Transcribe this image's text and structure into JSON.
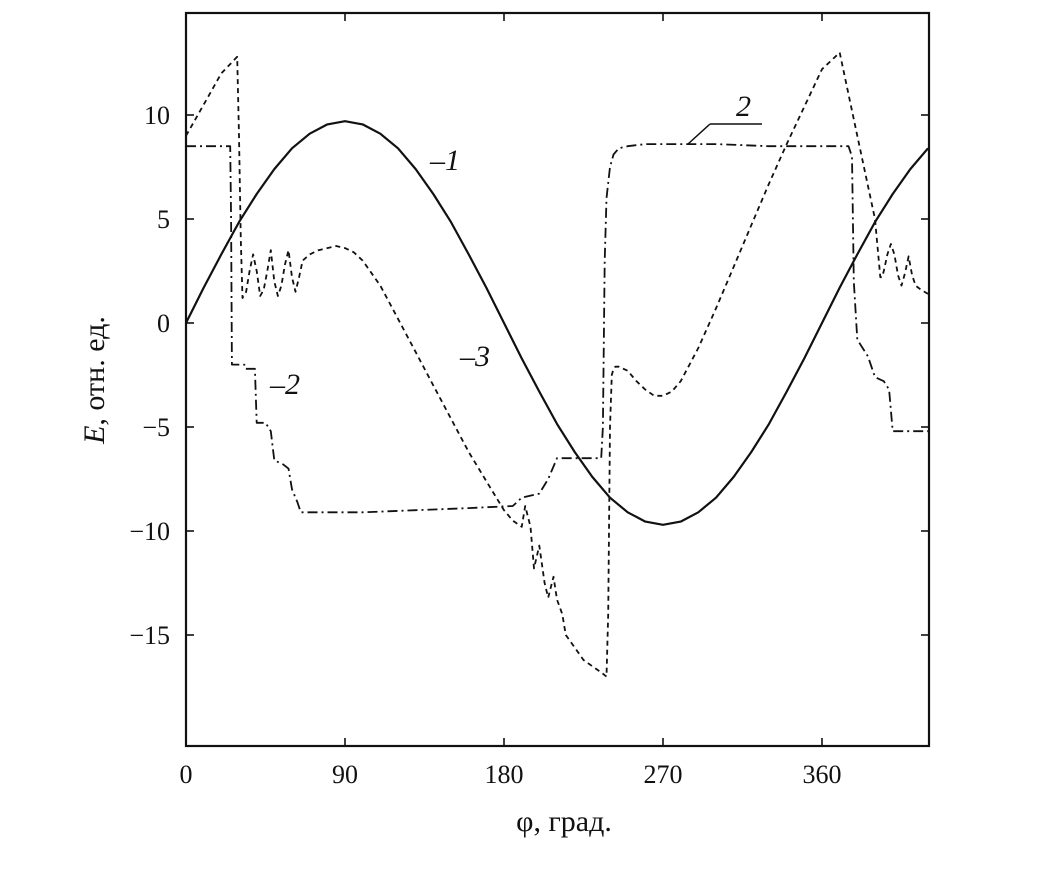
{
  "chart_data": {
    "type": "line",
    "title": "",
    "xlabel": "φ, град.",
    "ylabel_italic": "E",
    "ylabel_rest": ", отн. ед.",
    "xlim": [
      0,
      420
    ],
    "ylim": [
      -20,
      15
    ],
    "x_ticks": [
      0,
      90,
      180,
      270,
      360
    ],
    "x_tick_labels": [
      "0",
      "90",
      "180",
      "270",
      "360"
    ],
    "y_ticks": [
      10,
      5,
      0,
      -5,
      -10,
      -15
    ],
    "y_tick_labels": [
      "10",
      "5",
      "0",
      "−5",
      "−10",
      "−15"
    ],
    "grid": false,
    "legend": "none",
    "series": [
      {
        "label": "–1",
        "style": "solid",
        "x": [
          0,
          10,
          20,
          30,
          40,
          50,
          60,
          70,
          80,
          90,
          100,
          110,
          120,
          130,
          140,
          150,
          160,
          170,
          180,
          190,
          200,
          210,
          220,
          230,
          240,
          250,
          260,
          270,
          280,
          290,
          300,
          310,
          320,
          330,
          340,
          350,
          360,
          370,
          380,
          390,
          400,
          410,
          420
        ],
        "y": [
          0,
          1.7,
          3.3,
          4.85,
          6.2,
          7.4,
          8.4,
          9.1,
          9.55,
          9.7,
          9.55,
          9.1,
          8.4,
          7.4,
          6.2,
          4.85,
          3.3,
          1.7,
          0,
          -1.7,
          -3.3,
          -4.85,
          -6.2,
          -7.4,
          -8.4,
          -9.1,
          -9.55,
          -9.7,
          -9.55,
          -9.1,
          -8.4,
          -7.4,
          -6.2,
          -4.85,
          -3.3,
          -1.7,
          0,
          1.7,
          3.3,
          4.85,
          6.2,
          7.4,
          8.4
        ]
      },
      {
        "label": "–2",
        "label_alt": "2",
        "style": "dash-dot",
        "x": [
          0,
          25,
          25.5,
          26,
          33,
          33.5,
          39,
          40,
          45,
          48,
          50,
          55,
          58,
          60,
          63,
          65,
          100,
          130,
          160,
          185,
          190,
          200,
          205,
          210,
          220,
          235,
          236,
          237,
          238,
          240,
          242,
          245,
          250,
          260,
          270,
          300,
          330,
          360,
          370,
          375,
          377,
          378,
          380,
          383,
          386,
          390,
          395,
          398,
          400,
          420
        ],
        "y": [
          8.5,
          8.5,
          5,
          -2,
          -2,
          -2.2,
          -2.2,
          -4.8,
          -4.8,
          -5.2,
          -6.6,
          -6.8,
          -7,
          -8,
          -8.6,
          -9.1,
          -9.1,
          -9,
          -8.9,
          -8.8,
          -8.4,
          -8.2,
          -7.5,
          -6.5,
          -6.5,
          -6.5,
          -5,
          3,
          6,
          7.5,
          8.1,
          8.4,
          8.5,
          8.6,
          8.6,
          8.6,
          8.5,
          8.5,
          8.5,
          8.5,
          8,
          2,
          -0.8,
          -1.2,
          -1.6,
          -2.6,
          -2.8,
          -3.2,
          -5.2,
          -5.2
        ]
      },
      {
        "label": "–3",
        "style": "dashed",
        "x": [
          0,
          10,
          20,
          29,
          30,
          31,
          32,
          34,
          36,
          38,
          40,
          42,
          44,
          46,
          48,
          50,
          52,
          54,
          56,
          58,
          60,
          62,
          64,
          66,
          70,
          75,
          80,
          85,
          90,
          95,
          100,
          110,
          120,
          130,
          140,
          150,
          160,
          170,
          180,
          185,
          190,
          192,
          195,
          197,
          200,
          203,
          205,
          208,
          210,
          213,
          215,
          220,
          225,
          230,
          235,
          238,
          239,
          240,
          241,
          242,
          243,
          245,
          250,
          255,
          260,
          265,
          270,
          275,
          280,
          290,
          300,
          310,
          320,
          330,
          340,
          350,
          360,
          370,
          380,
          390,
          393,
          394,
          395,
          397,
          399,
          401,
          403,
          405,
          407,
          409,
          411,
          413,
          416,
          420
        ],
        "y": [
          9,
          10.5,
          12,
          12.8,
          9,
          4,
          1.2,
          1.5,
          2.5,
          3.3,
          2.5,
          1.3,
          1.6,
          2.5,
          3.5,
          2,
          1.3,
          1.8,
          2.8,
          3.5,
          2.2,
          1.5,
          2.2,
          3,
          3.3,
          3.5,
          3.6,
          3.7,
          3.6,
          3.4,
          3,
          1.8,
          0.2,
          -1.4,
          -3,
          -4.6,
          -6.2,
          -7.6,
          -9,
          -9.5,
          -9.8,
          -8.8,
          -9.8,
          -11.8,
          -10.7,
          -12.5,
          -13.2,
          -12.2,
          -13.3,
          -14,
          -15,
          -15.6,
          -16.2,
          -16.5,
          -16.8,
          -17,
          -14,
          -5,
          -2.5,
          -2.2,
          -2.1,
          -2.1,
          -2.3,
          -2.8,
          -3.2,
          -3.5,
          -3.5,
          -3.3,
          -2.8,
          -1.2,
          0.7,
          2.7,
          4.7,
          6.7,
          8.6,
          10.4,
          12.2,
          13,
          9,
          5,
          2.2,
          2.2,
          2.5,
          3.3,
          3.8,
          3.3,
          2.3,
          1.8,
          2.4,
          3.2,
          2.3,
          1.8,
          1.6,
          1.4
        ]
      }
    ],
    "annotations": [
      {
        "text": "–1",
        "series": 0
      },
      {
        "text": "–2",
        "series": 1
      },
      {
        "text": "2",
        "series": 1
      },
      {
        "text": "–3",
        "series": 2
      }
    ]
  }
}
